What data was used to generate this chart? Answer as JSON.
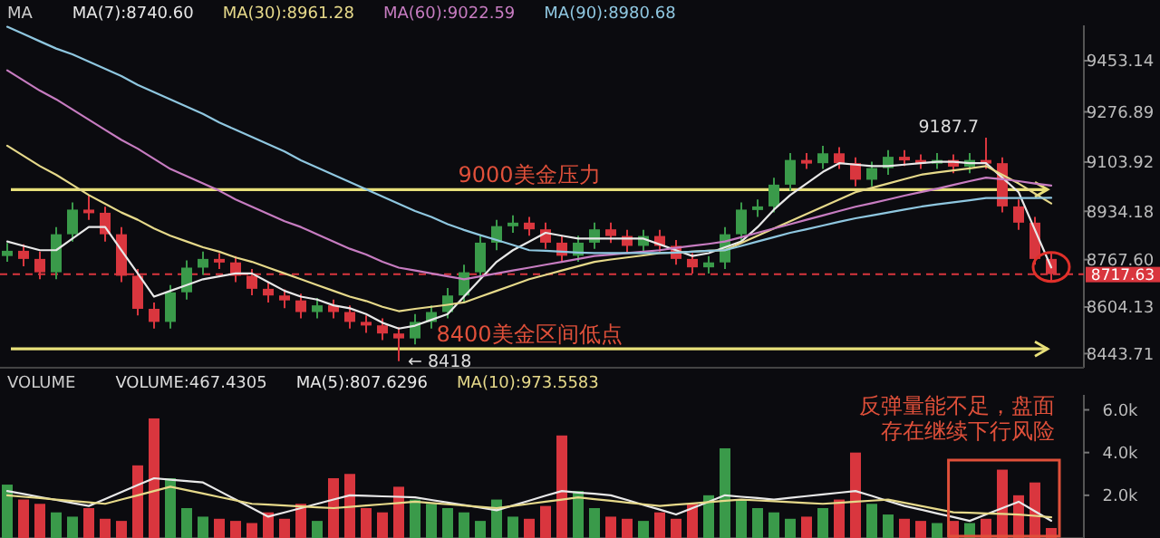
{
  "chart_data": [
    {
      "type": "candlestick",
      "categories": [
        null,
        null,
        null,
        null,
        null,
        null,
        null,
        null,
        null,
        null,
        null,
        null,
        null,
        null,
        null,
        null,
        null,
        null,
        null,
        null,
        null,
        null,
        null,
        null,
        null,
        null,
        null,
        null,
        null,
        null,
        null,
        null,
        null,
        null,
        null,
        null,
        null,
        null,
        null,
        null,
        null,
        null,
        null,
        null,
        null,
        null,
        null,
        null,
        null,
        null,
        null,
        null,
        null,
        null,
        null,
        null,
        null,
        null,
        null,
        null,
        null,
        null,
        null,
        null,
        null
      ],
      "ohlc": [
        [
          8780,
          8825,
          8760,
          8798
        ],
        [
          8798,
          8820,
          8745,
          8770
        ],
        [
          8770,
          8795,
          8700,
          8724
        ],
        [
          8724,
          8880,
          8700,
          8855
        ],
        [
          8855,
          8965,
          8830,
          8940
        ],
        [
          8940,
          8990,
          8905,
          8929
        ],
        [
          8929,
          8950,
          8830,
          8855
        ],
        [
          8855,
          8880,
          8690,
          8712
        ],
        [
          8712,
          8735,
          8575,
          8598
        ],
        [
          8598,
          8620,
          8530,
          8553
        ],
        [
          8553,
          8680,
          8530,
          8655
        ],
        [
          8655,
          8765,
          8630,
          8740
        ],
        [
          8740,
          8795,
          8715,
          8770
        ],
        [
          8770,
          8790,
          8735,
          8758
        ],
        [
          8758,
          8780,
          8690,
          8712
        ],
        [
          8712,
          8735,
          8645,
          8667
        ],
        [
          8667,
          8690,
          8620,
          8644
        ],
        [
          8644,
          8665,
          8600,
          8627
        ],
        [
          8627,
          8650,
          8565,
          8587
        ],
        [
          8587,
          8635,
          8565,
          8610
        ],
        [
          8610,
          8630,
          8565,
          8587
        ],
        [
          8587,
          8610,
          8530,
          8553
        ],
        [
          8553,
          8575,
          8515,
          8541
        ],
        [
          8541,
          8565,
          8490,
          8513
        ],
        [
          8513,
          8535,
          8418,
          8496
        ],
        [
          8496,
          8580,
          8475,
          8553
        ],
        [
          8553,
          8610,
          8530,
          8587
        ],
        [
          8587,
          8670,
          8565,
          8644
        ],
        [
          8644,
          8750,
          8620,
          8724
        ],
        [
          8724,
          8850,
          8700,
          8826
        ],
        [
          8826,
          8905,
          8800,
          8883
        ],
        [
          8883,
          8920,
          8860,
          8895
        ],
        [
          8895,
          8915,
          8850,
          8872
        ],
        [
          8872,
          8895,
          8805,
          8826
        ],
        [
          8826,
          8850,
          8760,
          8781
        ],
        [
          8781,
          8850,
          8760,
          8826
        ],
        [
          8826,
          8895,
          8805,
          8872
        ],
        [
          8872,
          8895,
          8825,
          8849
        ],
        [
          8849,
          8870,
          8790,
          8815
        ],
        [
          8815,
          8870,
          8795,
          8849
        ],
        [
          8849,
          8870,
          8795,
          8815
        ],
        [
          8815,
          8835,
          8750,
          8770
        ],
        [
          8770,
          8790,
          8720,
          8741
        ],
        [
          8741,
          8780,
          8720,
          8758
        ],
        [
          8758,
          8880,
          8735,
          8855
        ],
        [
          8855,
          8965,
          8830,
          8940
        ],
        [
          8940,
          8975,
          8915,
          8951
        ],
        [
          8951,
          9050,
          8930,
          9026
        ],
        [
          9026,
          9135,
          9005,
          9111
        ],
        [
          9111,
          9135,
          9080,
          9100
        ],
        [
          9100,
          9160,
          9080,
          9134
        ],
        [
          9134,
          9155,
          9080,
          9100
        ],
        [
          9100,
          9120,
          9020,
          9043
        ],
        [
          9043,
          9105,
          9020,
          9083
        ],
        [
          9083,
          9145,
          9060,
          9122
        ],
        [
          9122,
          9145,
          9090,
          9111
        ],
        [
          9111,
          9130,
          9080,
          9100
        ],
        [
          9100,
          9135,
          9080,
          9111
        ],
        [
          9111,
          9130,
          9065,
          9088
        ],
        [
          9088,
          9135,
          9065,
          9111
        ],
        [
          9111,
          9187.7,
          9080,
          9100
        ],
        [
          9100,
          9120,
          8930,
          8951
        ],
        [
          8951,
          8975,
          8870,
          8895
        ],
        [
          8895,
          8915,
          8750,
          8770
        ],
        [
          8770,
          8790,
          8695,
          8717.63
        ]
      ],
      "colors": [
        "#3a9a4a",
        "#d9363e",
        "#d9363e",
        "#3a9a4a",
        "#3a9a4a",
        "#d9363e",
        "#d9363e",
        "#d9363e",
        "#d9363e",
        "#d9363e",
        "#3a9a4a",
        "#3a9a4a",
        "#3a9a4a",
        "#d9363e",
        "#d9363e",
        "#d9363e",
        "#d9363e",
        "#d9363e",
        "#d9363e",
        "#3a9a4a",
        "#d9363e",
        "#d9363e",
        "#d9363e",
        "#d9363e",
        "#d9363e",
        "#3a9a4a",
        "#3a9a4a",
        "#3a9a4a",
        "#3a9a4a",
        "#3a9a4a",
        "#3a9a4a",
        "#3a9a4a",
        "#d9363e",
        "#d9363e",
        "#d9363e",
        "#3a9a4a",
        "#3a9a4a",
        "#d9363e",
        "#d9363e",
        "#3a9a4a",
        "#d9363e",
        "#d9363e",
        "#d9363e",
        "#3a9a4a",
        "#3a9a4a",
        "#3a9a4a",
        "#3a9a4a",
        "#3a9a4a",
        "#3a9a4a",
        "#d9363e",
        "#3a9a4a",
        "#d9363e",
        "#d9363e",
        "#3a9a4a",
        "#3a9a4a",
        "#d9363e",
        "#d9363e",
        "#3a9a4a",
        "#d9363e",
        "#3a9a4a",
        "#d9363e",
        "#d9363e",
        "#d9363e",
        "#d9363e",
        "#d9363e"
      ],
      "series": [
        {
          "name": "MA(7):8740.60",
          "type": "line",
          "color": "#e8e8e8",
          "values": [
            8830,
            8815,
            8800,
            8800,
            8840,
            8880,
            8880,
            8800,
            8720,
            8640,
            8660,
            8680,
            8700,
            8710,
            8720,
            8720,
            8690,
            8660,
            8640,
            8630,
            8610,
            8600,
            8580,
            8550,
            8530,
            8540,
            8560,
            8580,
            8640,
            8700,
            8760,
            8800,
            8830,
            8860,
            8850,
            8840,
            8840,
            8840,
            8840,
            8840,
            8820,
            8800,
            8780,
            8790,
            8810,
            8830,
            8880,
            8940,
            8990,
            9030,
            9070,
            9100,
            9095,
            9090,
            9090,
            9095,
            9100,
            9105,
            9105,
            9100,
            9100,
            9050,
            9000,
            8870,
            8740.6
          ]
        },
        {
          "name": "MA(30):8961.28",
          "type": "line",
          "color": "#e6d98a",
          "values": [
            9160,
            9125,
            9090,
            9060,
            9025,
            8990,
            8960,
            8930,
            8905,
            8875,
            8850,
            8830,
            8810,
            8795,
            8775,
            8760,
            8740,
            8720,
            8700,
            8680,
            8660,
            8640,
            8625,
            8605,
            8590,
            8598,
            8605,
            8612,
            8620,
            8640,
            8660,
            8680,
            8700,
            8715,
            8730,
            8745,
            8760,
            8768,
            8775,
            8782,
            8790,
            8792,
            8795,
            8798,
            8800,
            8825,
            8850,
            8875,
            8900,
            8925,
            8950,
            8975,
            9000,
            9015,
            9030,
            9045,
            9060,
            9068,
            9075,
            9082,
            9090,
            9060,
            9030,
            8995,
            8961.28
          ]
        },
        {
          "name": "MA(60):9022.59",
          "type": "line",
          "color": "#c77cc1",
          "values": [
            9420,
            9385,
            9350,
            9320,
            9285,
            9250,
            9215,
            9180,
            9150,
            9115,
            9080,
            9055,
            9030,
            9005,
            8975,
            8950,
            8925,
            8900,
            8880,
            8855,
            8830,
            8805,
            8785,
            8760,
            8740,
            8730,
            8720,
            8710,
            8700,
            8710,
            8720,
            8730,
            8740,
            8750,
            8760,
            8770,
            8780,
            8785,
            8790,
            8795,
            8800,
            8808,
            8815,
            8822,
            8830,
            8845,
            8860,
            8875,
            8890,
            8905,
            8920,
            8935,
            8950,
            8962,
            8975,
            8988,
            9000,
            9012,
            9025,
            9038,
            9050,
            9045,
            9038,
            9030,
            9022.59
          ]
        },
        {
          "name": "MA(90):8980.68",
          "type": "line",
          "color": "#8fc7e0",
          "values": [
            9570,
            9545,
            9520,
            9495,
            9475,
            9450,
            9425,
            9400,
            9370,
            9345,
            9320,
            9295,
            9270,
            9240,
            9215,
            9190,
            9165,
            9140,
            9110,
            9085,
            9060,
            9035,
            9010,
            8985,
            8960,
            8935,
            8915,
            8890,
            8870,
            8852,
            8835,
            8818,
            8800,
            8798,
            8795,
            8792,
            8790,
            8790,
            8790,
            8790,
            8790,
            8792,
            8795,
            8798,
            8800,
            8815,
            8830,
            8845,
            8860,
            8872,
            8885,
            8898,
            8910,
            8920,
            8930,
            8940,
            8950,
            8958,
            8965,
            8972,
            8980,
            8980,
            8980,
            8980,
            8980.68
          ]
        }
      ],
      "ylim": [
        8395,
        9575
      ],
      "yticks": [
        9453.14,
        9276.89,
        9103.92,
        8934.18,
        {
          "value": 8767.6,
          "label": "8767.60"
        },
        8604.13,
        8443.71
      ],
      "tick_labels": "y",
      "ref_lines": [
        {
          "axis": "y",
          "value": 9009,
          "label": "9000美金压力",
          "color": "#e8e07a",
          "line_style": "solid"
        },
        {
          "axis": "y",
          "value": 8460,
          "label": "8400美金区间低点",
          "color": "#e8e07a",
          "line_style": "solid"
        },
        {
          "axis": "y",
          "value": 8717.63,
          "label": "8717.63",
          "color": "#d9363e",
          "line_style": "dashed"
        }
      ],
      "annotations": [
        "MA",
        "9187.7",
        "← 8418"
      ]
    },
    {
      "type": "bar",
      "categories": [
        null,
        null,
        null,
        null,
        null,
        null,
        null,
        null,
        null,
        null,
        null,
        null,
        null,
        null,
        null,
        null,
        null,
        null,
        null,
        null,
        null,
        null,
        null,
        null,
        null,
        null,
        null,
        null,
        null,
        null,
        null,
        null,
        null,
        null,
        null,
        null,
        null,
        null,
        null,
        null,
        null,
        null,
        null,
        null,
        null,
        null,
        null,
        null,
        null,
        null,
        null,
        null,
        null,
        null,
        null,
        null,
        null,
        null,
        null,
        null,
        null,
        null,
        null,
        null,
        null
      ],
      "series": [
        {
          "type": "bar",
          "colors": [
            "#3a9a4a",
            "#d9363e",
            "#d9363e",
            "#3a9a4a",
            "#3a9a4a",
            "#d9363e",
            "#d9363e",
            "#d9363e",
            "#d9363e",
            "#d9363e",
            "#3a9a4a",
            "#3a9a4a",
            "#3a9a4a",
            "#d9363e",
            "#d9363e",
            "#d9363e",
            "#d9363e",
            "#d9363e",
            "#d9363e",
            "#3a9a4a",
            "#d9363e",
            "#d9363e",
            "#d9363e",
            "#d9363e",
            "#d9363e",
            "#3a9a4a",
            "#3a9a4a",
            "#3a9a4a",
            "#3a9a4a",
            "#3a9a4a",
            "#3a9a4a",
            "#3a9a4a",
            "#d9363e",
            "#d9363e",
            "#d9363e",
            "#3a9a4a",
            "#3a9a4a",
            "#d9363e",
            "#d9363e",
            "#3a9a4a",
            "#d9363e",
            "#d9363e",
            "#d9363e",
            "#3a9a4a",
            "#3a9a4a",
            "#3a9a4a",
            "#3a9a4a",
            "#3a9a4a",
            "#3a9a4a",
            "#d9363e",
            "#3a9a4a",
            "#d9363e",
            "#d9363e",
            "#3a9a4a",
            "#3a9a4a",
            "#d9363e",
            "#d9363e",
            "#3a9a4a",
            "#d9363e",
            "#3a9a4a",
            "#d9363e",
            "#d9363e",
            "#d9363e",
            "#d9363e",
            "#d9363e"
          ],
          "values": [
            2500,
            1800,
            1600,
            1200,
            1000,
            1400,
            900,
            800,
            3400,
            5600,
            2800,
            1400,
            1000,
            900,
            800,
            700,
            1200,
            900,
            1600,
            800,
            2800,
            3000,
            1400,
            1200,
            2400,
            1800,
            1600,
            1400,
            1200,
            800,
            1800,
            1000,
            900,
            1500,
            4800,
            2200,
            1400,
            1000,
            900,
            800,
            1200,
            900,
            1600,
            2000,
            4200,
            1800,
            1400,
            1200,
            900,
            1000,
            1400,
            1800,
            4000,
            1600,
            1100,
            900,
            800,
            700,
            800,
            700,
            900,
            3200,
            2000,
            2600,
            467.4305
          ]
        },
        {
          "name": "MA(5):807.6296",
          "type": "line",
          "color": "#e8e8e8",
          "values": [
            2200,
            2060,
            1920,
            1780,
            1640,
            1500,
            1820,
            2150,
            2480,
            2800,
            2730,
            2670,
            2600,
            2200,
            1800,
            1400,
            1000,
            1200,
            1400,
            1600,
            1800,
            2000,
            1980,
            1950,
            1930,
            1900,
            1780,
            1660,
            1540,
            1420,
            1300,
            1520,
            1750,
            1980,
            2200,
            2130,
            2070,
            2000,
            1780,
            1550,
            1330,
            1100,
            1400,
            1700,
            2000,
            1930,
            1870,
            1800,
            1880,
            1960,
            2040,
            2120,
            2200,
            1970,
            1730,
            1500,
            1330,
            1150,
            980,
            800,
            1100,
            1400,
            1700,
            1250,
            807.6296
          ]
        },
        {
          "name": "MA(10):973.5583",
          "type": "line",
          "color": "#e6d98a",
          "values": [
            2000,
            1930,
            1870,
            1800,
            1730,
            1670,
            1600,
            1800,
            2000,
            2200,
            2400,
            2240,
            2080,
            1920,
            1760,
            1600,
            1560,
            1520,
            1480,
            1440,
            1400,
            1460,
            1520,
            1580,
            1640,
            1700,
            1640,
            1580,
            1520,
            1460,
            1400,
            1500,
            1600,
            1700,
            1800,
            1900,
            1820,
            1740,
            1660,
            1580,
            1500,
            1560,
            1620,
            1680,
            1740,
            1800,
            1760,
            1720,
            1680,
            1640,
            1600,
            1650,
            1700,
            1750,
            1800,
            1650,
            1500,
            1350,
            1200,
            1180,
            1150,
            1130,
            1100,
            1040,
            973.5583
          ]
        }
      ],
      "ylim": [
        0,
        6700
      ],
      "yticks": [
        {
          "value": 2000,
          "label": "2.0k"
        },
        {
          "value": 4000,
          "label": "4.0k"
        },
        {
          "value": 6000,
          "label": "6.0k"
        }
      ],
      "tick_labels": "y",
      "annotations": [
        "VOLUME",
        "反弹量能不足，盘面存在继续下行风险",
        "VOLUME:467.4305"
      ]
    }
  ]
}
